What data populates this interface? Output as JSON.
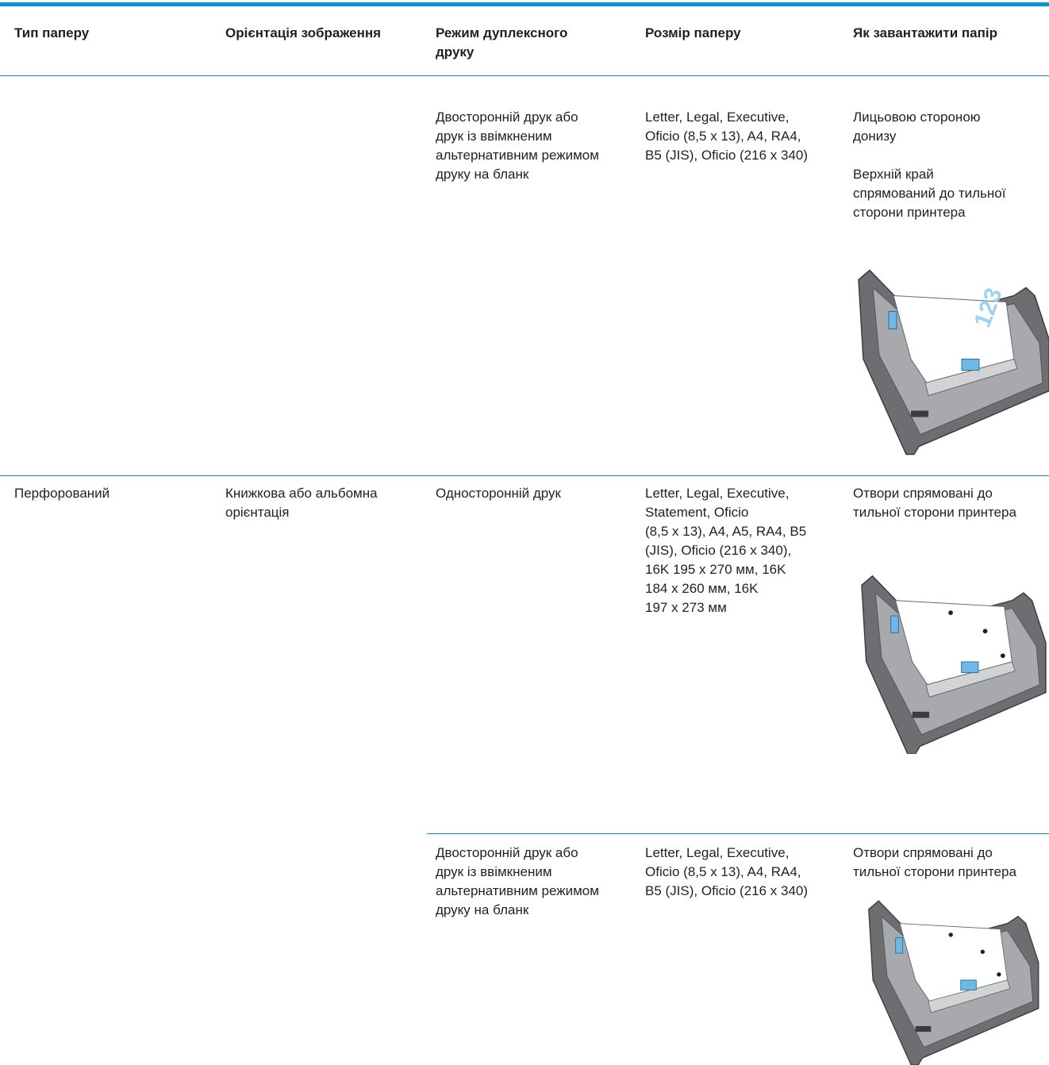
{
  "table": {
    "columns": [
      "Тип паперу",
      "Орієнтація зображення",
      [
        "Режим дуплексного",
        "друку"
      ],
      "Розмір паперу",
      "Як завантажити папір"
    ],
    "rows": [
      {
        "duplex": [
          [
            "Двосторонній друк або",
            "друк із ввімкненим",
            "альтернативним режимом",
            "друку на бланк"
          ]
        ],
        "size": [
          [
            "Letter, Legal, Executive,",
            "Oficio (8,5 x 13), A4, RA4,",
            "B5 (JIS), Oficio (216 x 340)"
          ]
        ],
        "load": [
          [
            "Лицьовою стороною",
            "донизу"
          ],
          [
            "Верхній край",
            "спрямований до тильної",
            "сторони принтера"
          ]
        ],
        "image_text": "123"
      },
      {
        "type": [
          [
            "Перфорований"
          ]
        ],
        "orientation": [
          [
            "Книжкова або альбомна",
            "орієнтація"
          ]
        ],
        "duplex": [
          [
            "Односторонній друк"
          ]
        ],
        "size": [
          [
            "Letter, Legal, Executive,",
            "Statement, Oficio",
            "(8,5 x 13), A4, A5, RA4, B5",
            "(JIS), Oficio (216 x 340),",
            "16K 195 x 270 мм, 16K",
            "184 x 260 мм, 16K",
            "197 x 273 мм"
          ]
        ],
        "load": [
          [
            "Отвори спрямовані до",
            "тильної сторони принтера"
          ]
        ]
      },
      {
        "duplex": [
          [
            "Двосторонній друк або",
            "друк із ввімкненим",
            "альтернативним режимом",
            "друку на бланк"
          ]
        ],
        "size": [
          [
            "Letter, Legal, Executive,",
            "Oficio (8,5 x 13), A4, RA4,",
            "B5 (JIS), Oficio (216 x 340)"
          ]
        ],
        "load": [
          [
            "Отвори спрямовані до",
            "тильної сторони принтера"
          ]
        ]
      }
    ]
  }
}
